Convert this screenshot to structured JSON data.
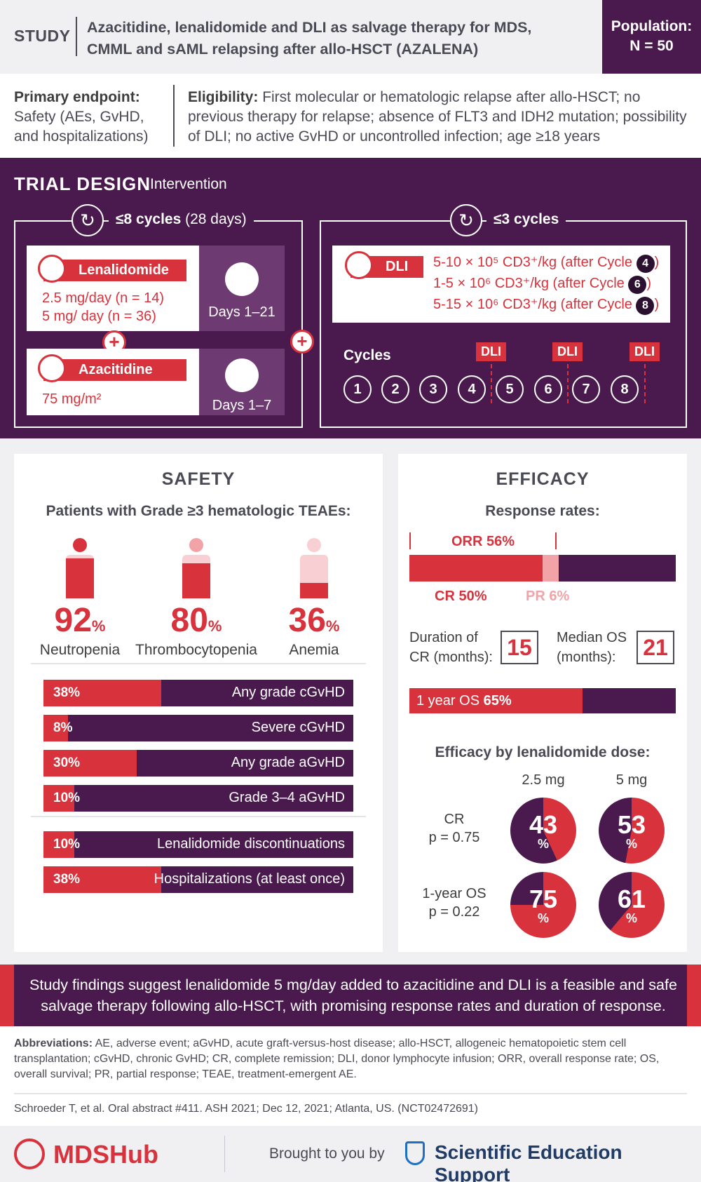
{
  "header": {
    "study": "STUDY",
    "title": "Azacitidine, lenalidomide and DLI as salvage therapy for MDS, CMML and sAML relapsing after allo-HSCT (AZALENA)",
    "population_label": "Population:",
    "population_value": "N = 50"
  },
  "endpoint": {
    "primary_title": "Primary endpoint:",
    "primary_text": "Safety (AEs, GvHD, and hospitalizations)",
    "eligibility_title": "Eligibility:",
    "eligibility_text": "First molecular or hematologic relapse after allo-HSCT; no previous therapy for relapse; absence of FLT3 and IDH2 mutation; possibility of DLI; no active GvHD or uncontrolled infection; age ≥18 years"
  },
  "trial_design": {
    "title": "TRIAL DESIGN",
    "subtitle": "Intervention",
    "left_cycles_bold": "≤8 cycles",
    "left_cycles_rest": "(28 days)",
    "right_cycles": "≤3 cycles",
    "lenalidomide": {
      "name": "Lenalidomide",
      "dose1": "2.5 mg/day (n = 14)",
      "dose2": "5 mg/ day (n = 36)",
      "days": "Days 1–21"
    },
    "azacitidine": {
      "name": "Azacitidine",
      "dose": "75 mg/m²",
      "days": "Days 1–7"
    },
    "dli": {
      "name": "DLI",
      "lines": [
        {
          "text": "5-10 × 10⁵ CD3⁺/kg (after Cycle",
          "cycle": "4"
        },
        {
          "text": "1-5 × 10⁶ CD3⁺/kg (after Cycle",
          "cycle": "6"
        },
        {
          "text": "5-15 × 10⁶ CD3⁺/kg (after Cycle",
          "cycle": "8"
        }
      ],
      "close": ")"
    },
    "cycles_label": "Cycles",
    "cycles": [
      "1",
      "2",
      "3",
      "4",
      "5",
      "6",
      "7",
      "8"
    ],
    "dli_tag": "DLI"
  },
  "safety": {
    "title": "SAFETY",
    "subtitle": "Patients with Grade ≥3 hematologic TEAEs:",
    "teaes": [
      {
        "value": "92",
        "unit": "%",
        "label": "Neutropenia",
        "fraction": 0.92
      },
      {
        "value": "80",
        "unit": "%",
        "label": "Thrombocytopenia",
        "fraction": 0.8
      },
      {
        "value": "36",
        "unit": "%",
        "label": "Anemia",
        "fraction": 0.36
      }
    ],
    "gvhd_bars": [
      {
        "pct": "38%",
        "label": "Any grade cGvHD",
        "fraction": 0.38
      },
      {
        "pct": "8%",
        "label": "Severe cGvHD",
        "fraction": 0.08
      },
      {
        "pct": "30%",
        "label": "Any grade aGvHD",
        "fraction": 0.3
      },
      {
        "pct": "10%",
        "label": "Grade 3–4 aGvHD",
        "fraction": 0.1
      }
    ],
    "other_bars": [
      {
        "pct": "10%",
        "label": "Lenalidomide discontinuations",
        "fraction": 0.1
      },
      {
        "pct": "38%",
        "label": "Hospitalizations (at least once)",
        "fraction": 0.38
      }
    ]
  },
  "efficacy": {
    "title": "EFFICACY",
    "response_title": "Response rates:",
    "orr": "ORR 56%",
    "cr": "CR 50%",
    "pr": "PR 6%",
    "cr_fraction": 0.5,
    "pr_fraction": 0.06,
    "duration_label": "Duration of CR (months):",
    "duration_value": "15",
    "os_label": "Median OS (months):",
    "os_value": "21",
    "os1y_prefix": "1 year OS ",
    "os1y_value": "65%",
    "os1y_fraction": 0.65,
    "dose_title": "Efficacy by lenalidomide dose:",
    "dose_cols": [
      "2.5 mg",
      "5 mg"
    ],
    "rows": [
      {
        "label": "CR",
        "p": "p = 0.75",
        "values": [
          {
            "v": "43",
            "f": 0.43
          },
          {
            "v": "53",
            "f": 0.53
          }
        ]
      },
      {
        "label": "1-year OS",
        "p": "p = 0.22",
        "values": [
          {
            "v": "75",
            "f": 0.75
          },
          {
            "v": "61",
            "f": 0.61
          }
        ]
      }
    ],
    "unit": "%"
  },
  "conclusion": "Study findings suggest lenalidomide 5 mg/day added to azacitidine and DLI is a feasible and safe salvage therapy following allo-HSCT, with promising response rates and duration of response.",
  "abbreviations": {
    "title": "Abbreviations:",
    "text": "AE, adverse event; aGvHD, acute graft-versus-host disease; allo-HSCT, allogeneic hematopoietic stem cell transplantation; cGvHD, chronic GvHD; CR, complete remission; DLI, donor lymphocyte infusion; ORR, overall response rate; OS, overall survival; PR, partial response; TEAE, treatment-emergent AE."
  },
  "reference": "Schroeder T, et al. Oral abstract #411. ASH 2021; Dec 12, 2021; Atlanta, US. (NCT02472691)",
  "footer": {
    "brand": "MDSHub",
    "brought": "Brought to you by",
    "sponsor": "Scientific Education Support"
  },
  "colors": {
    "purple": "#4a1a4e",
    "red": "#d8323c",
    "pink": "#f2a3a8"
  }
}
